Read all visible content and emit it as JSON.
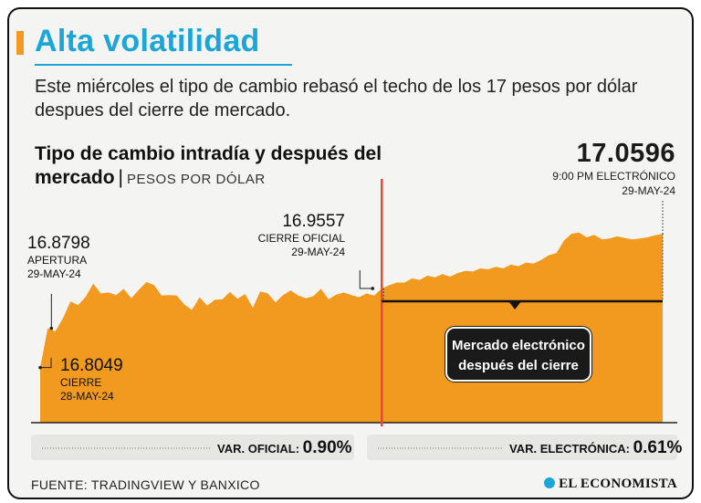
{
  "header": {
    "title": "Alta volatilidad",
    "subtitle": "Este miércoles el tipo de cambio rebasó el techo de los 17 pesos por dólar despues del cierre de mercado."
  },
  "chart_title": {
    "main": "Tipo de cambio intradía y después del mercado",
    "separator": "|",
    "units": "PESOS POR DÓLAR"
  },
  "annotations": {
    "prev_close": {
      "value": "16.8049",
      "label": "CIERRE",
      "date": "28-MAY-24"
    },
    "open": {
      "value": "16.8798",
      "label": "APERTURA",
      "date": "29-MAY-24"
    },
    "official_close": {
      "value": "16.9557",
      "label": "CIERRE OFICIAL",
      "date": "29-MAY-24"
    },
    "electronic": {
      "value": "17.0596",
      "label": "9:00 PM ELECTRÓNICO",
      "date": "29-MAY-24"
    },
    "callout": {
      "line1": "Mercado electrónico",
      "line2": "después del cierre"
    }
  },
  "footer": {
    "var_official_label": "VAR. OFICIAL:",
    "var_official_value": "0.90%",
    "var_electronic_label": "VAR. ELECTRÓNICA:",
    "var_electronic_value": "0.61%",
    "source": "FUENTE: TRADINGVIEW Y BANXICO",
    "brand": "EL ECONOMISTA"
  },
  "colors": {
    "accent": "#f29a1f",
    "title": "#1aa6d6",
    "divider": "#e8473a",
    "dark": "#1a1a1a"
  },
  "chart_data": {
    "type": "area",
    "title": "Tipo de cambio intradía y después del mercado",
    "ylabel": "PESOS POR DÓLAR",
    "ylim": [
      16.7,
      17.14
    ],
    "segments": [
      "intradía",
      "mercado electrónico después del cierre"
    ],
    "official_close_index": 45,
    "series": [
      {
        "name": "Tipo de cambio",
        "values": [
          16.8049,
          16.8798,
          16.874,
          16.899,
          16.931,
          16.924,
          16.94,
          16.965,
          16.946,
          16.948,
          16.943,
          16.955,
          16.937,
          16.953,
          16.968,
          16.962,
          16.942,
          16.943,
          16.942,
          16.925,
          16.915,
          16.939,
          16.923,
          16.934,
          16.935,
          16.949,
          16.936,
          16.945,
          16.919,
          16.95,
          16.946,
          16.929,
          16.943,
          16.952,
          16.942,
          16.937,
          16.941,
          16.955,
          16.935,
          16.944,
          16.948,
          16.943,
          16.939,
          16.946,
          16.942,
          16.9557,
          16.962,
          16.967,
          16.967,
          16.975,
          16.972,
          16.98,
          16.977,
          16.983,
          16.978,
          16.985,
          16.989,
          16.988,
          16.994,
          16.992,
          16.997,
          16.994,
          17.001,
          16.998,
          17.005,
          17.003,
          17.01,
          17.019,
          17.023,
          17.047,
          17.06,
          17.062,
          17.053,
          17.058,
          17.049,
          17.051,
          17.055,
          17.052,
          17.049,
          17.051,
          17.053,
          17.057,
          17.0596
        ]
      }
    ]
  }
}
